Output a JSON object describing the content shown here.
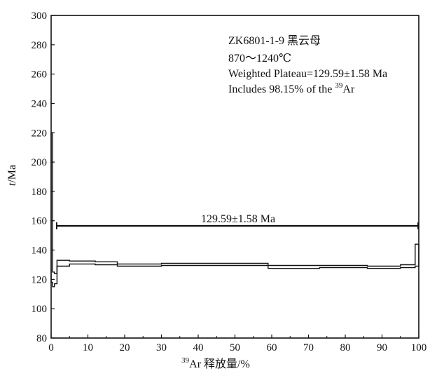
{
  "chart_data": {
    "type": "line",
    "subtype": "argon-step-plateau",
    "x_axis": {
      "label_sup": "39",
      "label_main": "Ar 释放量/%",
      "range": [
        0,
        100
      ],
      "ticks": [
        0,
        10,
        20,
        30,
        40,
        50,
        60,
        70,
        80,
        90,
        100
      ]
    },
    "y_axis": {
      "label_italic": "t",
      "label_unit": "/Ma",
      "range": [
        80,
        300
      ],
      "ticks": [
        80,
        100,
        120,
        140,
        160,
        180,
        200,
        220,
        240,
        260,
        280,
        300
      ]
    },
    "annotation": {
      "sample": "ZK6801-1-9 黑云母",
      "temp_range": "870～1240℃",
      "plateau_text": "Weighted Plateau=129.59±1.58 Ma",
      "includes_pre": "Includes 98.15%  of  the ",
      "includes_sup": "39",
      "includes_post": "Ar"
    },
    "plateau": {
      "label": "129.59±1.58 Ma",
      "y": 156.5,
      "x_start": 1.5,
      "x_end": 100
    },
    "steps": [
      {
        "x_start": 0.0,
        "x_end": 0.4,
        "upper": 220,
        "lower": 118
      },
      {
        "x_start": 0.4,
        "x_end": 0.9,
        "upper": 125,
        "lower": 115
      },
      {
        "x_start": 0.9,
        "x_end": 1.6,
        "upper": 124,
        "lower": 117
      },
      {
        "x_start": 1.6,
        "x_end": 5.0,
        "upper": 133,
        "lower": 129
      },
      {
        "x_start": 5.0,
        "x_end": 12.0,
        "upper": 132.5,
        "lower": 130.5
      },
      {
        "x_start": 12.0,
        "x_end": 18.0,
        "upper": 132,
        "lower": 130
      },
      {
        "x_start": 18.0,
        "x_end": 30.0,
        "upper": 130.5,
        "lower": 129
      },
      {
        "x_start": 30.0,
        "x_end": 59.0,
        "upper": 131,
        "lower": 129.5
      },
      {
        "x_start": 59.0,
        "x_end": 73.0,
        "upper": 129.5,
        "lower": 127.5
      },
      {
        "x_start": 73.0,
        "x_end": 86.0,
        "upper": 129.5,
        "lower": 128
      },
      {
        "x_start": 86.0,
        "x_end": 95.0,
        "upper": 129,
        "lower": 127.5
      },
      {
        "x_start": 95.0,
        "x_end": 99.0,
        "upper": 130,
        "lower": 128
      },
      {
        "x_start": 99.0,
        "x_end": 100.0,
        "upper": 144,
        "lower": 129
      }
    ],
    "grid": false
  }
}
